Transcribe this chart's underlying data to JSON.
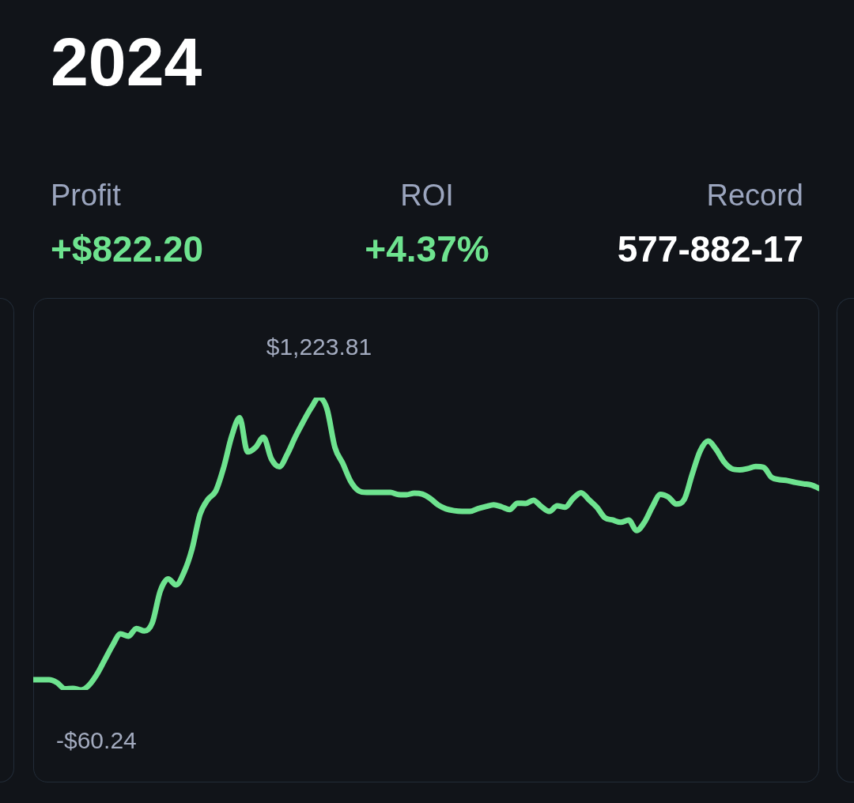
{
  "chart_data": {
    "type": "line",
    "title": "2024",
    "annotations": [
      "Profit",
      "+$822.20",
      "ROI",
      "+4.37%",
      "Record",
      "577-882-17"
    ],
    "categories": [
      null,
      null,
      null,
      null,
      null,
      null,
      null,
      null,
      null,
      null,
      null,
      null,
      null,
      null,
      null,
      null,
      null,
      null,
      null,
      null,
      null,
      null,
      null,
      null,
      null,
      null,
      null,
      null,
      null,
      null,
      null,
      null,
      null,
      null,
      null,
      null,
      null,
      null,
      null,
      null,
      null,
      null,
      null,
      null,
      null,
      null,
      null,
      null,
      null,
      null,
      null,
      null,
      null,
      null,
      null,
      null,
      null,
      null,
      null,
      null,
      null,
      null,
      null,
      null,
      null,
      null,
      null,
      null,
      null,
      null,
      null,
      null,
      null,
      null,
      null,
      null,
      null,
      null,
      null,
      null,
      null,
      null,
      null,
      null,
      null,
      null,
      null,
      null,
      null,
      null,
      null,
      null,
      null,
      null,
      null,
      null,
      null,
      null,
      null,
      null
    ],
    "values": [
      -15,
      -15,
      -15,
      -28,
      -55,
      -53,
      -60.24,
      -40,
      7,
      71,
      136,
      186,
      176,
      210,
      199,
      235,
      374,
      427,
      401,
      457,
      558,
      710,
      776,
      814,
      918,
      1054,
      1135,
      985,
      1005,
      1049,
      954,
      920,
      975,
      1050,
      1117,
      1178,
      1223.81,
      1174,
      1005,
      934,
      855,
      814,
      807,
      807,
      807,
      807,
      798,
      797,
      804,
      800,
      781,
      752,
      735,
      727,
      724,
      724,
      736,
      745,
      753,
      744,
      732,
      760,
      759,
      773,
      745,
      724,
      748,
      742,
      781,
      806,
      775,
      742,
      696,
      686,
      676,
      686,
      640,
      677,
      745,
      799,
      787,
      756,
      776,
      887,
      989,
      1033,
      997,
      942,
      911,
      906,
      912,
      921,
      917,
      873,
      863,
      859,
      851,
      845,
      840,
      825
    ],
    "value_labels": [
      null,
      null,
      null,
      null,
      null,
      null,
      "-$60.24",
      null,
      null,
      null,
      null,
      null,
      null,
      null,
      null,
      null,
      null,
      null,
      null,
      null,
      null,
      null,
      null,
      null,
      null,
      null,
      null,
      null,
      null,
      null,
      null,
      null,
      null,
      null,
      null,
      null,
      "$1,223.81",
      null,
      null,
      null,
      null,
      null,
      null,
      null,
      null,
      null,
      null,
      null,
      null,
      null,
      null,
      null,
      null,
      null,
      null,
      null,
      null,
      null,
      null,
      null,
      null,
      null,
      null,
      null,
      null,
      null,
      null,
      null,
      null,
      null,
      null,
      null,
      null,
      null,
      null,
      null,
      null,
      null,
      null,
      null,
      null,
      null,
      null,
      null,
      null,
      null,
      null,
      null,
      null,
      null,
      null,
      null,
      null,
      null,
      null,
      null,
      null,
      null,
      null,
      null
    ],
    "color": "#6ee38f",
    "marker": "none",
    "tick_labels": false
  }
}
